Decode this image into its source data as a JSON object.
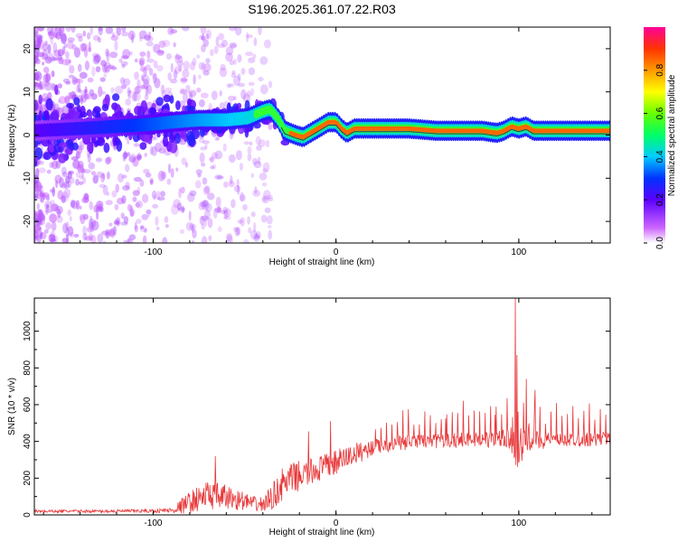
{
  "title": "S196.2025.361.07.22.R03",
  "chart_data": [
    {
      "type": "heatmap",
      "xlabel": "Height of straight line (km)",
      "ylabel": "Frequency (Hz)",
      "xlim": [
        -165,
        150
      ],
      "ylim": [
        -25,
        25
      ],
      "x_ticks": [
        -100,
        0,
        100
      ],
      "y_ticks": [
        -20,
        -10,
        0,
        10,
        20
      ],
      "ridge": {
        "description_points": [
          [
            -165,
            1
          ],
          [
            -140,
            1.5
          ],
          [
            -120,
            2
          ],
          [
            -100,
            2.5
          ],
          [
            -90,
            3
          ],
          [
            -75,
            3.5
          ],
          [
            -60,
            3.5
          ],
          [
            -48,
            4
          ],
          [
            -40,
            5.5
          ],
          [
            -36,
            6
          ],
          [
            -32,
            4
          ],
          [
            -28,
            1
          ],
          [
            -22,
            0
          ],
          [
            -18,
            -0.5
          ],
          [
            -14,
            0.5
          ],
          [
            -8,
            2
          ],
          [
            -4,
            3
          ],
          [
            0,
            3
          ],
          [
            3,
            1.5
          ],
          [
            6,
            0.5
          ],
          [
            10,
            1.5
          ],
          [
            20,
            1.5
          ],
          [
            40,
            1.5
          ],
          [
            55,
            1
          ],
          [
            80,
            1
          ],
          [
            88,
            0.5
          ],
          [
            92,
            1
          ],
          [
            96,
            2
          ],
          [
            100,
            1.5
          ],
          [
            104,
            2
          ],
          [
            108,
            1
          ],
          [
            150,
            1
          ]
        ],
        "peak_amplitude": 0.95,
        "band_halfwidth_hz": 1.0
      },
      "colorbar": {
        "label": "Normalized spectral amplitude",
        "range": [
          0,
          1
        ],
        "ticks": [
          0.0,
          0.2,
          0.4,
          0.6,
          0.8
        ]
      }
    },
    {
      "type": "line",
      "xlabel": "Height of straight line (km)",
      "ylabel": "SNR (10 * v/v)",
      "xlim": [
        -165,
        150
      ],
      "ylim": [
        0,
        1180
      ],
      "x_ticks": [
        -100,
        0,
        100
      ],
      "y_ticks": [
        0,
        200,
        400,
        600,
        800,
        1000
      ],
      "series": [
        {
          "name": "SNR",
          "color": "#e8383a",
          "x": [
            -165,
            -130,
            -100,
            -90,
            -85,
            -80,
            -75,
            -70,
            -65,
            -60,
            -55,
            -50,
            -45,
            -40,
            -35,
            -30,
            -25,
            -20,
            -15,
            -10,
            -5,
            0,
            5,
            10,
            15,
            20,
            30,
            40,
            50,
            60,
            70,
            80,
            90,
            95,
            98,
            100,
            102,
            105,
            110,
            120,
            130,
            140,
            150
          ],
          "values": [
            20,
            20,
            22,
            25,
            45,
            70,
            90,
            110,
            100,
            95,
            85,
            75,
            60,
            55,
            95,
            160,
            190,
            215,
            225,
            250,
            265,
            285,
            310,
            330,
            350,
            365,
            385,
            395,
            400,
            405,
            410,
            410,
            410,
            405,
            380,
            350,
            380,
            410,
            405,
            405,
            410,
            410,
            415
          ],
          "noise_amplitude": [
            8,
            8,
            10,
            15,
            40,
            60,
            70,
            80,
            75,
            70,
            60,
            50,
            40,
            45,
            70,
            90,
            90,
            80,
            75,
            75,
            70,
            70,
            65,
            60,
            55,
            45,
            40,
            40,
            40,
            40,
            40,
            40,
            50,
            70,
            100,
            120,
            100,
            70,
            50,
            40,
            40,
            40,
            40
          ],
          "spikes": [
            [
              -66,
              320
            ],
            [
              -15,
              455
            ],
            [
              -3,
              510
            ],
            [
              60,
              525
            ],
            [
              87,
              545
            ],
            [
              98,
              1180
            ],
            [
              99,
              870
            ],
            [
              104,
              740
            ],
            [
              109,
              680
            ]
          ]
        }
      ]
    }
  ]
}
